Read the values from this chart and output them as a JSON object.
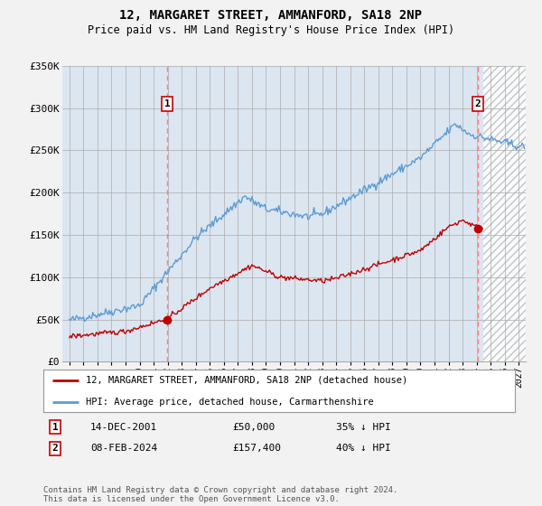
{
  "title": "12, MARGARET STREET, AMMANFORD, SA18 2NP",
  "subtitle": "Price paid vs. HM Land Registry's House Price Index (HPI)",
  "ylim": [
    0,
    350000
  ],
  "yticks": [
    0,
    50000,
    100000,
    150000,
    200000,
    250000,
    300000,
    350000
  ],
  "ytick_labels": [
    "£0",
    "£50K",
    "£100K",
    "£150K",
    "£200K",
    "£250K",
    "£300K",
    "£350K"
  ],
  "hpi_color": "#5b9bd5",
  "price_color": "#c00000",
  "plot_bg_color": "#dce6f1",
  "bg_color": "#f2f2f2",
  "grid_color": "#aaaaaa",
  "vline_color": "#ff8080",
  "marker1_date_num": 2001.96,
  "marker1_price": 50000,
  "marker1_label": "1",
  "marker1_date_str": "14-DEC-2001",
  "marker1_price_str": "£50,000",
  "marker1_pct": "35% ↓ HPI",
  "marker2_date_num": 2024.1,
  "marker2_price": 157400,
  "marker2_label": "2",
  "marker2_date_str": "08-FEB-2024",
  "marker2_price_str": "£157,400",
  "marker2_pct": "40% ↓ HPI",
  "legend_line1": "12, MARGARET STREET, AMMANFORD, SA18 2NP (detached house)",
  "legend_line2": "HPI: Average price, detached house, Carmarthenshire",
  "footer": "Contains HM Land Registry data © Crown copyright and database right 2024.\nThis data is licensed under the Open Government Licence v3.0.",
  "hatch_start": 2024.5,
  "xlim_left": 1994.5,
  "xlim_right": 2027.5
}
